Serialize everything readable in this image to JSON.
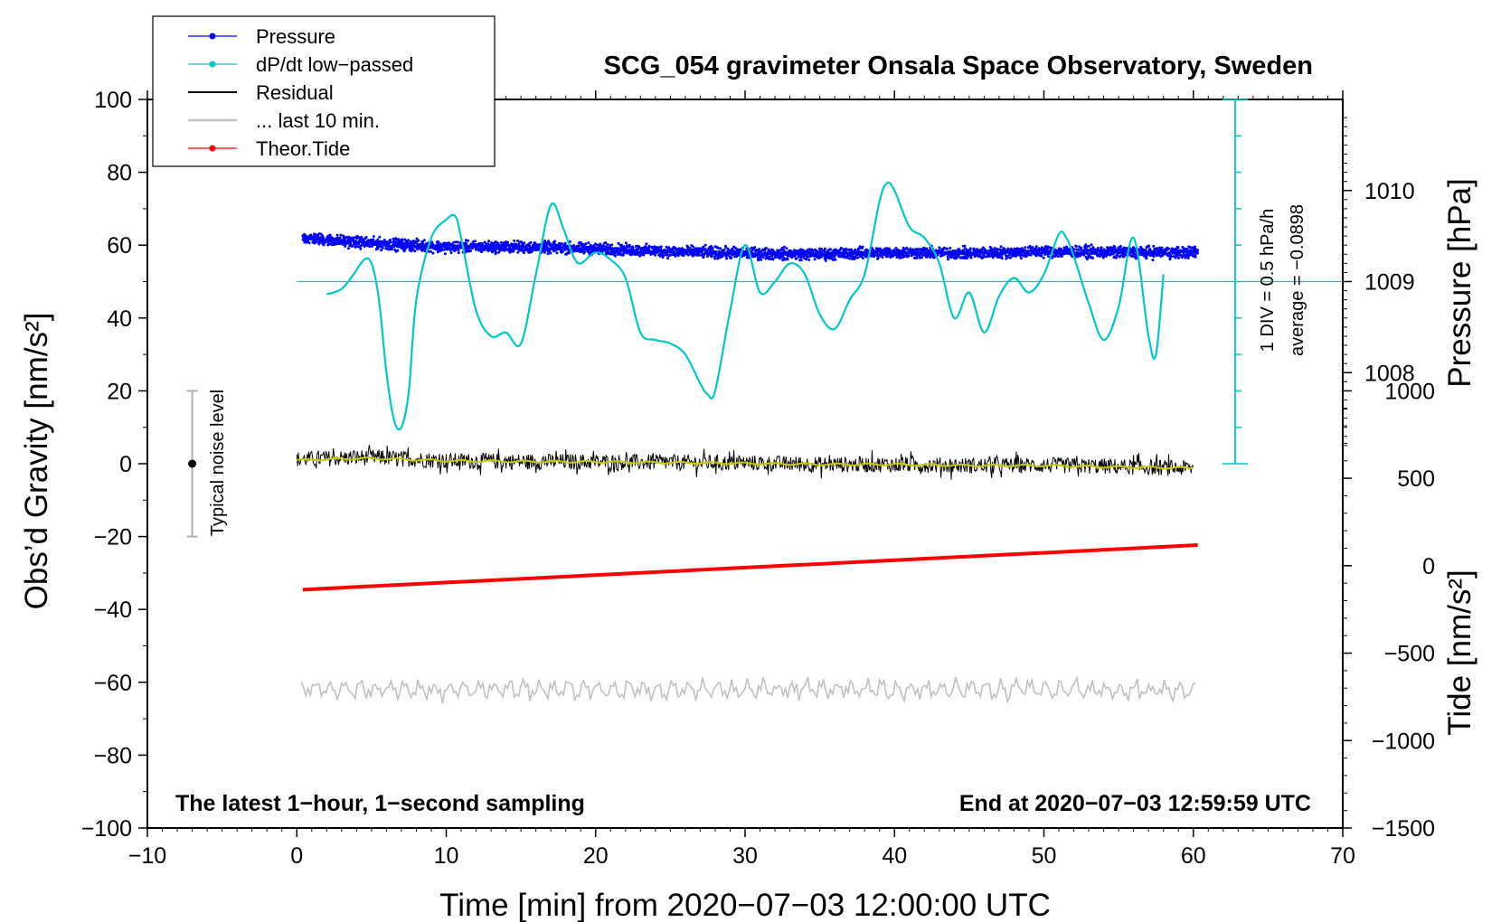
{
  "chart_data": {
    "type": "line",
    "title": "SCG_054 gravimeter Onsala Space Observatory, Sweden",
    "xlabel": "Time [min] from 2020−07−03 12:00:00 UTC",
    "ylabel": "Obs’d Gravity [nm/s²]",
    "ylabel_right_top": "Pressure [hPa]",
    "ylabel_right_bottom": "Tide [nm/s²]",
    "xlim": [
      -10,
      70
    ],
    "ylim": [
      -100,
      100
    ],
    "x_ticks": [
      -10,
      0,
      10,
      20,
      30,
      40,
      50,
      60,
      70
    ],
    "x_tick_labels": [
      "−10",
      "0",
      "10",
      "20",
      "30",
      "40",
      "50",
      "60",
      "70"
    ],
    "y_ticks": [
      -100,
      -80,
      -60,
      -40,
      -20,
      0,
      20,
      40,
      60,
      80,
      100
    ],
    "y_tick_labels": [
      "−100",
      "−80",
      "−60",
      "−40",
      "−20",
      "0",
      "20",
      "40",
      "60",
      "80",
      "100"
    ],
    "pressure_axis": {
      "label": "Pressure [hPa]",
      "ticks": [
        1008,
        1009,
        1010
      ],
      "tick_labels": [
        "1008",
        "1009",
        "1010"
      ],
      "gravity_at_1009": 50,
      "gravity_per_hpa": 25
    },
    "tide_axis": {
      "label": "Tide [nm/s²]",
      "ticks": [
        -1500,
        -1000,
        -500,
        0,
        500,
        1000
      ],
      "tick_labels": [
        "−1500",
        "−1000",
        "−500",
        "0",
        "500",
        "1000"
      ],
      "range": [
        -1500,
        1000
      ],
      "gravity_range": [
        -100,
        20
      ]
    },
    "dpdt_scale": {
      "label": "1 DIV = 0.5 hPa/h",
      "average_label": "average = −0.0898",
      "x": 62.8,
      "baseline": 50,
      "range": [
        0,
        100
      ],
      "div": 10
    },
    "legend": {
      "position": "top-left",
      "entries": [
        {
          "name": "Pressure",
          "color": "#0000ff",
          "marker": "dot"
        },
        {
          "name": "dP/dt low−passed",
          "color": "#00c8c8",
          "marker": "dot"
        },
        {
          "name": "Residual",
          "color": "#000000",
          "marker": "line"
        },
        {
          "name": "... last 10 min.",
          "color": "#c0c0c0",
          "marker": "line"
        },
        {
          "name": "Theor.Tide",
          "color": "#ff0000",
          "marker": "dot"
        }
      ]
    },
    "noise_bar": {
      "x": -7,
      "center": 0,
      "low": -20,
      "high": 20,
      "label": "Typical noise level"
    },
    "series": [
      {
        "name": "Pressure",
        "color": "#0000ff",
        "kind": "dots",
        "x": [
          0.4,
          5,
          10,
          15,
          20,
          25,
          30,
          35,
          40,
          45,
          50,
          55,
          60.3
        ],
        "values": [
          1009.48,
          1009.42,
          1009.38,
          1009.38,
          1009.36,
          1009.33,
          1009.31,
          1009.3,
          1009.32,
          1009.31,
          1009.33,
          1009.32,
          1009.32
        ],
        "scatter": 0.06
      },
      {
        "name": "dP/dt low-passed",
        "color": "#00c8c8",
        "kind": "line",
        "x": [
          2,
          3,
          3.8,
          4.5,
          5,
          5.5,
          6,
          6.5,
          7,
          7.5,
          8,
          9,
          10,
          10.6,
          11,
          12,
          13,
          14,
          15,
          16,
          17,
          17.8,
          18.5,
          19,
          20,
          21,
          22,
          23,
          24,
          25,
          26,
          27,
          27.5,
          28,
          29,
          30,
          31,
          32,
          33,
          34,
          35,
          36,
          37,
          38,
          39,
          39.5,
          40,
          41,
          42,
          43,
          44,
          45,
          46,
          47,
          48,
          49,
          50,
          51,
          51.5,
          52,
          53,
          54,
          55,
          56,
          57,
          57.5,
          58
        ],
        "values": [
          46.5,
          48,
          52,
          56,
          55,
          45,
          25,
          12,
          10,
          20,
          45,
          62,
          67,
          68,
          62,
          42,
          35,
          36,
          33,
          52,
          71,
          65,
          57,
          55,
          58,
          56,
          51,
          36,
          34,
          33,
          30,
          22,
          19,
          20,
          42,
          60,
          47,
          50,
          55,
          52,
          41,
          37,
          45,
          52,
          72,
          77,
          75,
          65,
          62,
          55,
          40,
          47,
          36,
          46,
          51,
          47,
          52,
          63,
          62,
          57,
          44,
          34,
          43,
          62,
          35,
          30,
          52
        ]
      },
      {
        "name": "Residual",
        "color": "#000000",
        "kind": "noise",
        "x": [
          0,
          5,
          10,
          15,
          20,
          25,
          30,
          35,
          40,
          45,
          50,
          55,
          60
        ],
        "values": [
          1.2,
          1.8,
          0.8,
          0.6,
          0.5,
          0.3,
          0.2,
          -0.2,
          -0.2,
          -0.5,
          -0.4,
          -0.8,
          -1.3
        ],
        "amplitude": 2.2
      },
      {
        "name": "Residual smoothed",
        "color": "#c8c800",
        "kind": "line",
        "x": [
          0,
          5,
          10,
          15,
          20,
          25,
          30,
          35,
          40,
          45,
          50,
          55,
          60
        ],
        "values": [
          1.0,
          1.5,
          0.8,
          0.6,
          0.5,
          0.3,
          0.1,
          -0.2,
          -0.2,
          -0.5,
          -0.5,
          -0.9,
          -1.2
        ]
      },
      {
        "name": "Theor.Tide",
        "color": "#ff0000",
        "kind": "line",
        "x": [
          0.4,
          60.3
        ],
        "values": [
          -137,
          118
        ]
      },
      {
        "name": "... last 10 min.",
        "color": "#c0c0c0",
        "kind": "wave",
        "x": [
          0.3,
          60.2
        ],
        "values": [
          -62,
          -62
        ],
        "amplitude": 2.5
      }
    ],
    "annotations": [
      {
        "text": "The latest 1−hour, 1−second sampling",
        "position": "bottom-left"
      },
      {
        "text": "End at 2020−07−03 12:59:59 UTC",
        "position": "bottom-right"
      }
    ]
  }
}
